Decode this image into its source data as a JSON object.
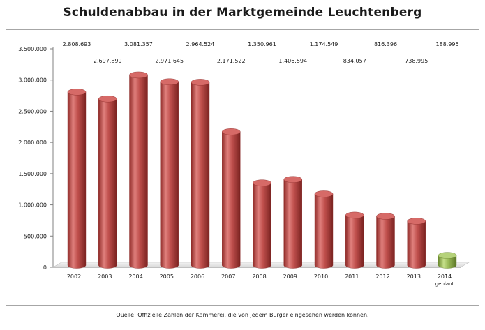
{
  "page": {
    "title": "Schuldenabbau in der Marktgemeinde  Leuchtenberg",
    "source": "Quelle: Offizielle Zahlen der Kämmerei, die von jedem Bürger eingesehen werden können."
  },
  "colors": {
    "bar": "#c0504d",
    "bar_planned": "#9bbb59",
    "axis": "#808080"
  },
  "chart_data": {
    "type": "bar",
    "title": "Schuldenabbau in der Marktgemeinde  Leuchtenberg",
    "xlabel": "",
    "ylabel": "",
    "ylim": [
      0,
      3500000
    ],
    "yticks": [
      0,
      500000,
      1000000,
      1500000,
      2000000,
      2500000,
      3000000,
      3500000
    ],
    "ytick_labels": [
      "0",
      "500.000",
      "1.000.000",
      "1.500.000",
      "2.000.000",
      "2.500.000",
      "3.000.000",
      "3.500.000"
    ],
    "categories": [
      "2002",
      "2003",
      "2004",
      "2005",
      "2006",
      "2007",
      "2008",
      "2009",
      "2010",
      "2011",
      "2012",
      "2013",
      "2014"
    ],
    "category_sublabels": [
      "",
      "",
      "",
      "",
      "",
      "",
      "",
      "",
      "",
      "",
      "",
      "",
      "geplant"
    ],
    "values": [
      2808693,
      2697899,
      3081357,
      2971645,
      2964524,
      2171522,
      1350961,
      1406594,
      1174549,
      834057,
      816396,
      738995,
      188995
    ],
    "value_labels": [
      "2.808.693",
      "2.697.899",
      "3.081.357",
      "2.971.645",
      "2.964.524",
      "2.171.522",
      "1.350.961",
      "1.406.594",
      "1.174.549",
      "834.057",
      "816.396",
      "738.995",
      "188.995"
    ],
    "planned": [
      false,
      false,
      false,
      false,
      false,
      false,
      false,
      false,
      false,
      false,
      false,
      false,
      true
    ],
    "grid": false,
    "legend": "none"
  }
}
